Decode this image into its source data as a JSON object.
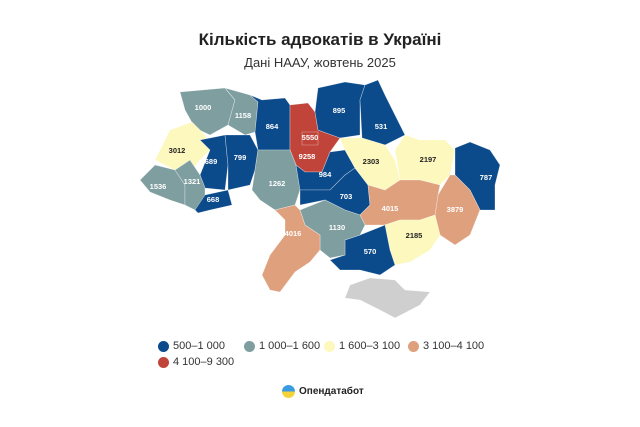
{
  "title": "Кількість адвокатів в Україні",
  "subtitle": "Дані НААУ, жовтень 2025",
  "legend": [
    {
      "label": "500–1 000",
      "color": "#0b4a8b"
    },
    {
      "label": "1 000–1 600",
      "color": "#7f9e9f"
    },
    {
      "label": "1 600–3 100",
      "color": "#fdf8bd"
    },
    {
      "label": "3 100–4 100",
      "color": "#dfa07e"
    },
    {
      "label": "4 100–9 300",
      "color": "#c0443a"
    }
  ],
  "no_data_color": "#cfcfcf",
  "regions": [
    {
      "value": "1000",
      "class": 1
    },
    {
      "value": "1158",
      "class": 1
    },
    {
      "value": "864",
      "class": 0
    },
    {
      "value": "9258",
      "class": 4
    },
    {
      "value": "895",
      "class": 0
    },
    {
      "value": "531",
      "class": 0
    },
    {
      "value": "3012",
      "class": 2
    },
    {
      "value": "689",
      "class": 0
    },
    {
      "value": "799",
      "class": 0
    },
    {
      "value": "1536",
      "class": 1
    },
    {
      "value": "1321",
      "class": 1
    },
    {
      "value": "668",
      "class": 0
    },
    {
      "value": "1262",
      "class": 1
    },
    {
      "value": "984",
      "class": 0
    },
    {
      "value": "703",
      "class": 0
    },
    {
      "value": "2303",
      "class": 2
    },
    {
      "value": "2197",
      "class": 2
    },
    {
      "value": "787",
      "class": 0
    },
    {
      "value": "3879",
      "class": 3
    },
    {
      "value": "4015",
      "class": 3
    },
    {
      "value": "2185",
      "class": 2
    },
    {
      "value": "570",
      "class": 0
    },
    {
      "value": "1130",
      "class": 1
    },
    {
      "value": "4016",
      "class": 3
    },
    {
      "value": "5550",
      "class": 4
    }
  ],
  "brand": "Опендатабот"
}
